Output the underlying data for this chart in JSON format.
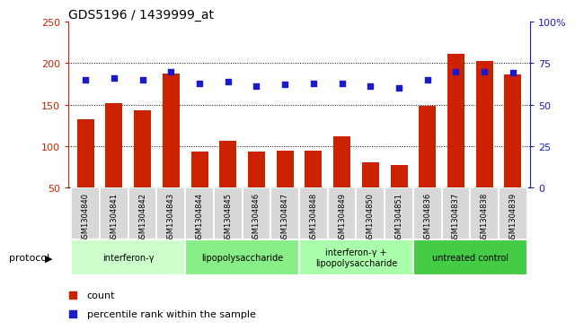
{
  "title": "GDS5196 / 1439999_at",
  "samples": [
    "GSM1304840",
    "GSM1304841",
    "GSM1304842",
    "GSM1304843",
    "GSM1304844",
    "GSM1304845",
    "GSM1304846",
    "GSM1304847",
    "GSM1304848",
    "GSM1304849",
    "GSM1304850",
    "GSM1304851",
    "GSM1304836",
    "GSM1304837",
    "GSM1304838",
    "GSM1304839"
  ],
  "counts": [
    132,
    152,
    143,
    187,
    93,
    106,
    93,
    95,
    94,
    112,
    80,
    77,
    148,
    211,
    203,
    186
  ],
  "percentiles": [
    65,
    66,
    65,
    70,
    63,
    64,
    61,
    62,
    63,
    63,
    61,
    60,
    65,
    70,
    70,
    69
  ],
  "ylim_left": [
    50,
    250
  ],
  "ylim_right": [
    0,
    100
  ],
  "yticks_left": [
    50,
    100,
    150,
    200,
    250
  ],
  "yticks_right": [
    0,
    25,
    50,
    75,
    100
  ],
  "yticklabels_right": [
    "0",
    "25",
    "50",
    "75",
    "100%"
  ],
  "bar_color": "#cc2200",
  "dot_color": "#1a1acc",
  "groups": [
    {
      "label": "interferon-γ",
      "start": 0,
      "end": 4,
      "color": "#ccffcc"
    },
    {
      "label": "lipopolysaccharide",
      "start": 4,
      "end": 8,
      "color": "#88ee88"
    },
    {
      "label": "interferon-γ +\nlipopolysaccharide",
      "start": 8,
      "end": 12,
      "color": "#aaffaa"
    },
    {
      "label": "untreated control",
      "start": 12,
      "end": 16,
      "color": "#44cc44"
    }
  ],
  "protocol_label": "protocol",
  "legend_count": "count",
  "legend_percentile": "percentile rank within the sample",
  "gridlines": [
    100,
    150,
    200
  ],
  "sample_box_color": "#d8d8d8",
  "plot_bg": "white"
}
